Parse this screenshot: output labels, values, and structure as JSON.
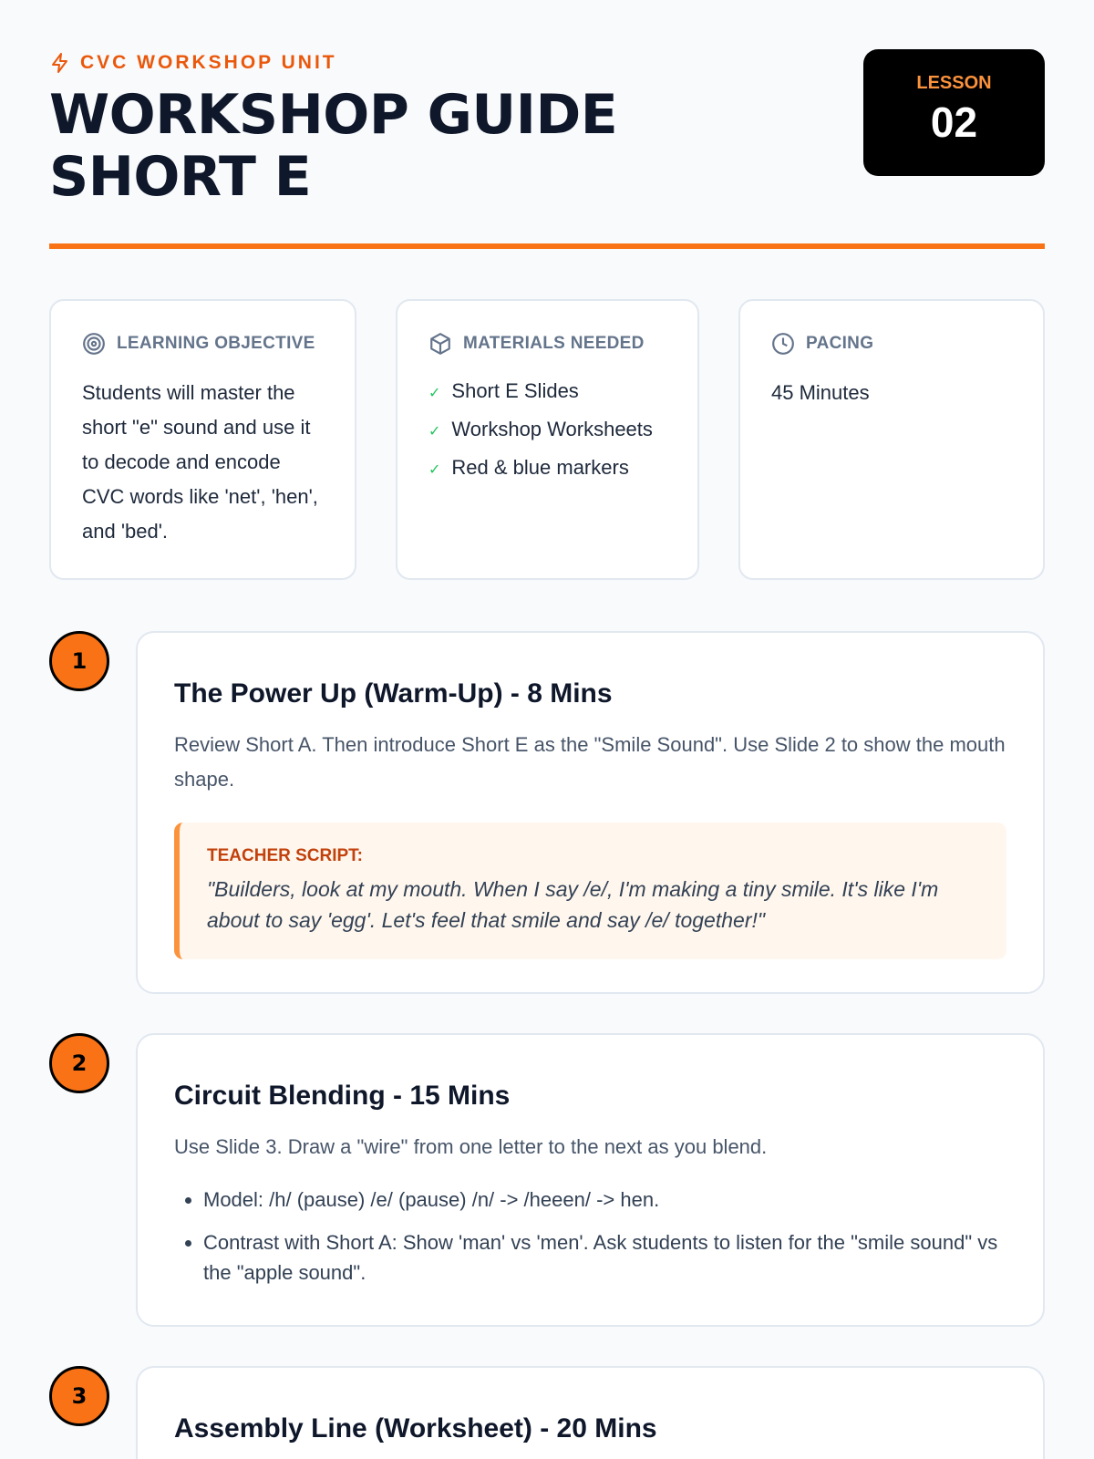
{
  "header": {
    "kicker": "CVC WORKSHOP UNIT",
    "kicker_icon": "lightning-icon",
    "title": "WORKSHOP GUIDE SHORT E",
    "lesson_label": "LESSON",
    "lesson_number": "02",
    "accent": "#f97316"
  },
  "cards": {
    "objective": {
      "title": "LEARNING OBJECTIVE",
      "icon": "target-icon",
      "text": "Students will master the short \"e\" sound and use it to decode and encode CVC words like 'net', 'hen', and 'bed'."
    },
    "materials": {
      "title": "MATERIALS NEEDED",
      "icon": "box-icon",
      "items": [
        "Short E Slides",
        "Workshop Worksheets",
        "Red & blue markers"
      ]
    },
    "pacing": {
      "title": "PACING",
      "icon": "clock-icon",
      "text": "45 Minutes"
    }
  },
  "steps": [
    {
      "number": "1",
      "title": "The Power Up (Warm-Up) - 8 Mins",
      "desc": "Review Short A. Then introduce Short E as the \"Smile Sound\". Use Slide 2 to show the mouth shape.",
      "script_label": "TEACHER SCRIPT:",
      "script": "\"Builders, look at my mouth. When I say /e/, I'm making a tiny smile. It's like I'm about to say 'egg'. Let's feel that smile and say /e/ together!\""
    },
    {
      "number": "2",
      "title": "Circuit Blending - 15 Mins",
      "desc": "Use Slide 3. Draw a \"wire\" from one letter to the next as you blend.",
      "bullets": [
        "Model: /h/ (pause) /e/ (pause) /n/ -> /heeen/ -> hen.",
        "Contrast with Short A: Show 'man' vs 'men'. Ask students to listen for the \"smile sound\" vs the \"apple sound\"."
      ]
    },
    {
      "number": "3",
      "title": "Assembly Line (Worksheet) - 20 Mins"
    }
  ]
}
